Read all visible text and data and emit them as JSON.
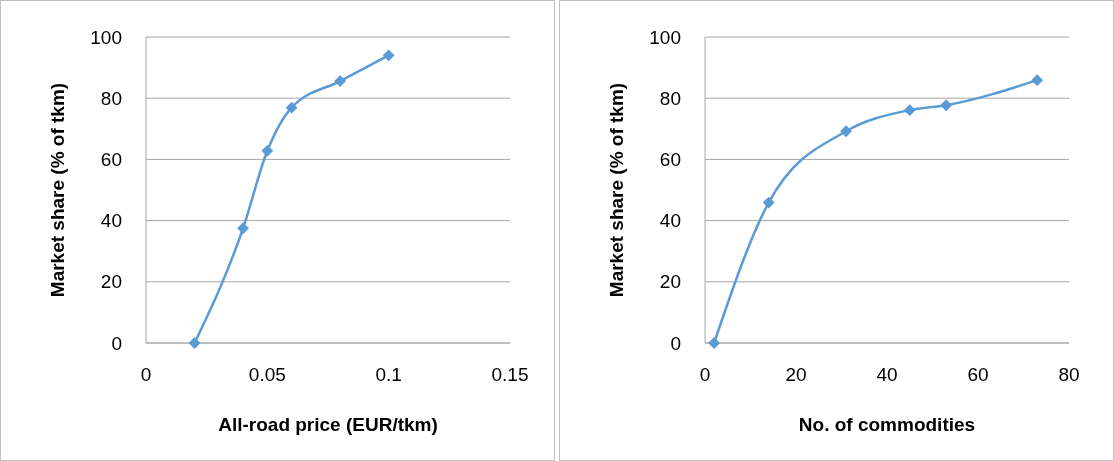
{
  "chart_data": [
    {
      "type": "line",
      "xlabel": "All-road price (EUR/tkm)",
      "ylabel": "Market share (% of tkm)",
      "x": [
        0.02,
        0.04,
        0.05,
        0.06,
        0.08,
        0.1
      ],
      "series": [
        {
          "color": "#5b9bd5",
          "values": [
            0,
            37.5,
            62.8,
            76.9,
            85.6,
            94
          ]
        }
      ],
      "xlim": [
        0,
        0.15
      ],
      "xticks": [
        0,
        0.05,
        0.1,
        0.15
      ],
      "ylim": [
        0,
        100
      ],
      "yticks": [
        0,
        20,
        40,
        60,
        80,
        100
      ],
      "grid": "y",
      "marker": "diamond"
    },
    {
      "type": "line",
      "xlabel": "No. of commodities",
      "ylabel": "Market share (% of tkm)",
      "x": [
        2,
        14,
        31,
        45,
        53,
        73
      ],
      "series": [
        {
          "color": "#5b9bd5",
          "values": [
            0,
            45.9,
            69.2,
            76.1,
            77.7,
            85.9
          ]
        }
      ],
      "xlim": [
        0,
        80
      ],
      "xticks": [
        0,
        20,
        40,
        60,
        80
      ],
      "ylim": [
        0,
        100
      ],
      "yticks": [
        0,
        20,
        40,
        60,
        80,
        100
      ],
      "grid": "y",
      "marker": "diamond"
    }
  ]
}
